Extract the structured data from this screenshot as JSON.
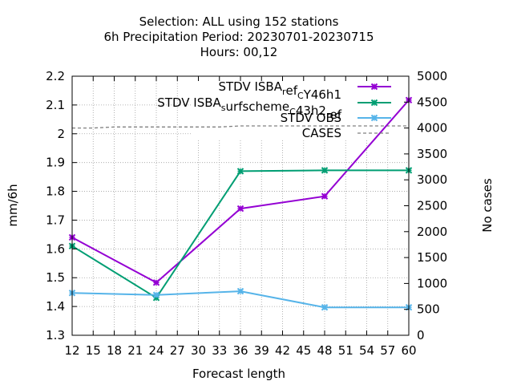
{
  "title_lines": [
    "Selection: ALL using   152 stations",
    "6h Precipitation   Period: 20230701-20230715",
    "Hours:  00,12"
  ],
  "chart_data": {
    "type": "line",
    "xlabel": "Forecast length",
    "ylabel": "mm/6h",
    "y2label": "No cases",
    "xlim": [
      12,
      60
    ],
    "ylim": [
      1.3,
      2.2
    ],
    "y2lim": [
      0,
      5000
    ],
    "xticks": [
      "12",
      "15",
      "18",
      "21",
      "24",
      "27",
      "30",
      "33",
      "36",
      "39",
      "42",
      "45",
      "48",
      "51",
      "54",
      "57",
      "60"
    ],
    "yticks": [
      "1.3",
      "1.4",
      "1.5",
      "1.6",
      "1.7",
      "1.8",
      "1.9",
      "2",
      "2.1",
      "2.2"
    ],
    "y2ticks": [
      "0",
      "500",
      "1000",
      "1500",
      "2000",
      "2500",
      "3000",
      "3500",
      "4000",
      "4500",
      "5000"
    ],
    "grid": true,
    "legend_position": "top-right",
    "series": [
      {
        "name": "STDV ISBA_ref_CY46h1",
        "color": "#9400d3",
        "marker": "x",
        "axis": "y",
        "x": [
          12,
          24,
          36,
          48,
          60
        ],
        "values": [
          1.64,
          1.483,
          1.74,
          1.783,
          2.117
        ]
      },
      {
        "name": "STDV ISBA_surfscheme_C43h2_ref",
        "color": "#009e73",
        "marker": "x",
        "axis": "y",
        "x": [
          12,
          24,
          36,
          48,
          60
        ],
        "values": [
          1.61,
          1.43,
          1.87,
          1.873,
          1.873
        ]
      },
      {
        "name": "STDV OBS",
        "color": "#56b4e9",
        "marker": "x",
        "axis": "y",
        "x": [
          12,
          24,
          36,
          48,
          60
        ],
        "values": [
          1.447,
          1.44,
          1.453,
          1.397,
          1.397
        ]
      },
      {
        "name": "CASES",
        "color": "#808080",
        "marker": "none",
        "dash": true,
        "axis": "y2",
        "x": [
          12,
          15,
          18,
          21,
          24,
          27,
          30,
          33,
          36,
          39,
          42,
          45,
          48,
          51,
          54,
          57,
          60
        ],
        "values": [
          4000,
          4000,
          4020,
          4020,
          4020,
          4020,
          4020,
          4020,
          4040,
          4040,
          4040,
          4040,
          4040,
          4040,
          4040,
          4040,
          4040
        ]
      }
    ]
  }
}
